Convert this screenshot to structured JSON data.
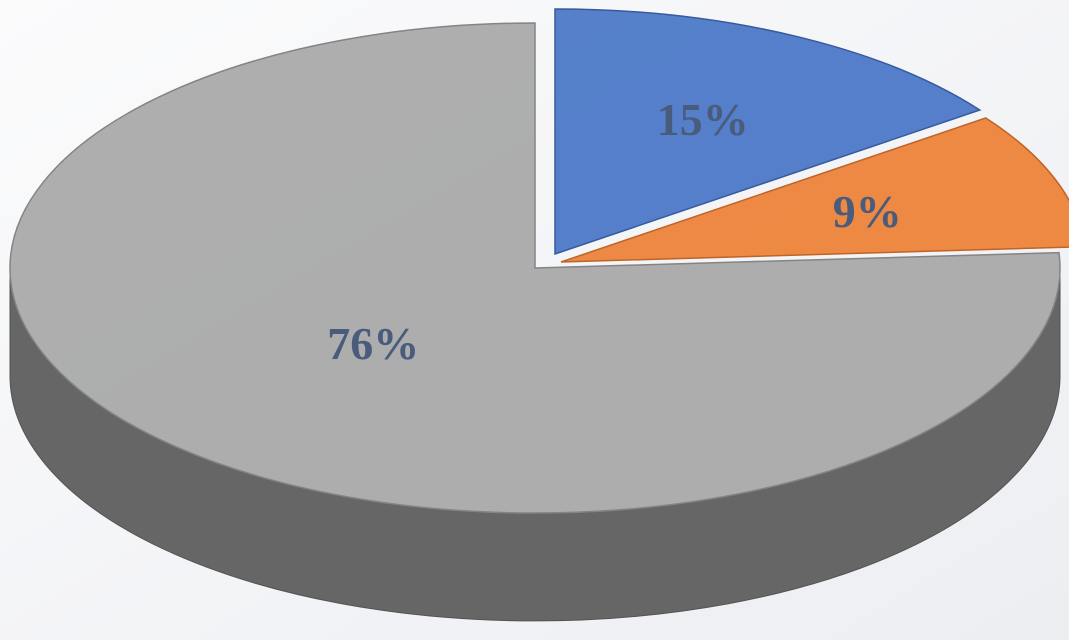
{
  "chart_data": {
    "type": "pie",
    "values": [
      15,
      9,
      76
    ],
    "value_labels": [
      "15%",
      "9%",
      "76%"
    ],
    "colors": [
      "#4472c4",
      "#ed7d31",
      "#a5a5a5"
    ]
  }
}
